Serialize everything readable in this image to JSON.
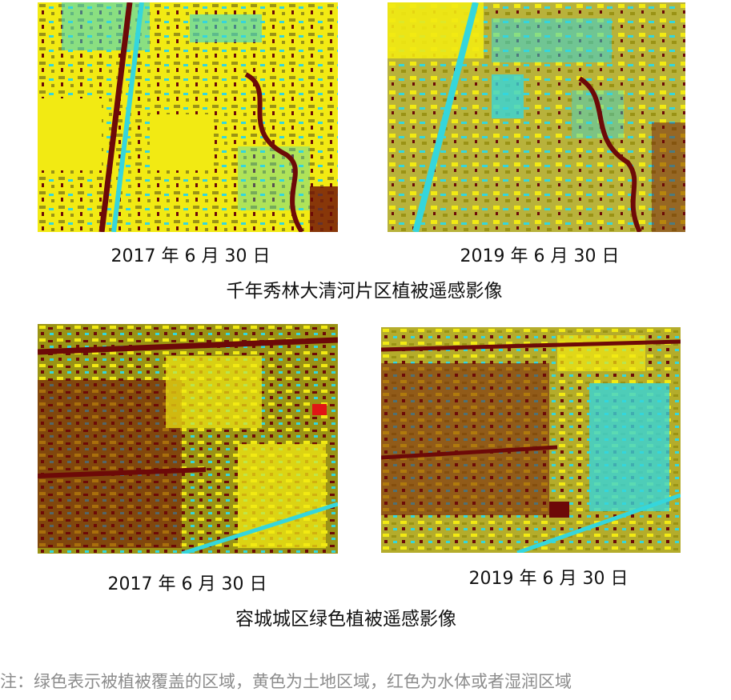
{
  "top_section": {
    "left_caption": "2017 年 6 月 30 日",
    "right_caption": "2019 年 6 月 30 日",
    "title": "千年秀林大清河片区植被遥感影像"
  },
  "bottom_section": {
    "left_caption": "2017 年 6 月 30 日",
    "right_caption": "2019 年 6 月 30 日",
    "title": "容城城区绿色植被遥感影像"
  },
  "note": "注：绿色表示被植被覆盖的区域，黄色为土地区域，红色为水体或者湿润区域",
  "colors": {
    "vegetation_cyan": "#35d6dc",
    "land_yellow": "#f2ea13",
    "olive": "#9a9315",
    "water_red": "#6d0a08",
    "note_gray": "#8c8c8c"
  }
}
